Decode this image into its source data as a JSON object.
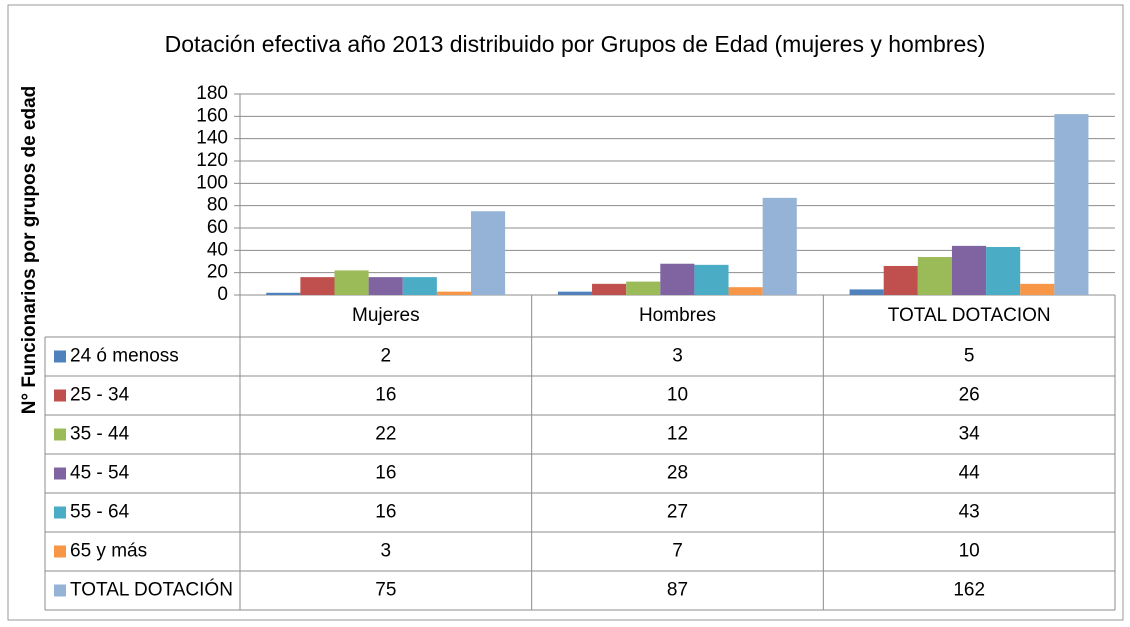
{
  "chart_data": {
    "type": "bar",
    "title": "Dotación efectiva año 2013 distribuido por Grupos de Edad (mujeres y hombres)",
    "y_label": "N° Funcionarios por grupos de edad",
    "categories": [
      "Mujeres",
      "Hombres",
      "TOTAL DOTACION"
    ],
    "series": [
      {
        "name": "24 ó menoss",
        "color": "#4f81bd",
        "values": [
          2,
          3,
          5
        ]
      },
      {
        "name": "25 - 34",
        "color": "#c0504d",
        "values": [
          16,
          10,
          26
        ]
      },
      {
        "name": "35 - 44",
        "color": "#9bbb59",
        "values": [
          22,
          12,
          34
        ]
      },
      {
        "name": "45 - 54",
        "color": "#8064a2",
        "values": [
          16,
          28,
          44
        ]
      },
      {
        "name": "55 - 64",
        "color": "#4bacc6",
        "values": [
          16,
          27,
          43
        ]
      },
      {
        "name": "65 y más",
        "color": "#f79646",
        "values": [
          3,
          7,
          10
        ]
      },
      {
        "name": "TOTAL DOTACIÓN",
        "color": "#95b3d7",
        "values": [
          75,
          87,
          162
        ]
      }
    ],
    "ylim": [
      0,
      180
    ],
    "yticks": [
      0,
      20,
      40,
      60,
      80,
      100,
      120,
      140,
      160,
      180
    ],
    "grid": true
  }
}
